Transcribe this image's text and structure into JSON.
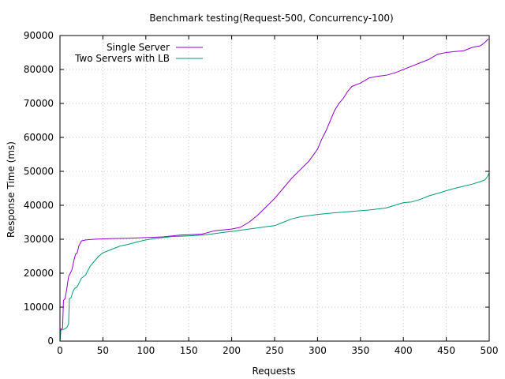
{
  "chart_data": {
    "type": "line",
    "title": "Benchmark testing(Request-500, Concurrency-100)",
    "xlabel": "Requests",
    "ylabel": "Response Time (ms)",
    "xlim": [
      0,
      500
    ],
    "ylim": [
      0,
      90000
    ],
    "xticks": [
      0,
      50,
      100,
      150,
      200,
      250,
      300,
      350,
      400,
      450,
      500
    ],
    "yticks": [
      0,
      10000,
      20000,
      30000,
      40000,
      50000,
      60000,
      70000,
      80000,
      90000
    ],
    "grid": "dotted",
    "legend_position": "top-left",
    "series": [
      {
        "name": "Single Server",
        "color": "#9400d3",
        "points": [
          [
            0,
            0
          ],
          [
            1,
            3500
          ],
          [
            2,
            3600
          ],
          [
            3,
            3800
          ],
          [
            4,
            12000
          ],
          [
            6,
            12500
          ],
          [
            8,
            15500
          ],
          [
            10,
            19000
          ],
          [
            12,
            20000
          ],
          [
            14,
            21000
          ],
          [
            16,
            23500
          ],
          [
            18,
            25500
          ],
          [
            20,
            26000
          ],
          [
            22,
            28000
          ],
          [
            25,
            29500
          ],
          [
            30,
            29800
          ],
          [
            40,
            30000
          ],
          [
            60,
            30200
          ],
          [
            80,
            30300
          ],
          [
            100,
            30500
          ],
          [
            120,
            30700
          ],
          [
            140,
            31200
          ],
          [
            155,
            31400
          ],
          [
            165,
            31500
          ],
          [
            180,
            32500
          ],
          [
            200,
            33000
          ],
          [
            210,
            33500
          ],
          [
            220,
            35000
          ],
          [
            230,
            37000
          ],
          [
            240,
            39500
          ],
          [
            250,
            42000
          ],
          [
            260,
            45000
          ],
          [
            270,
            48000
          ],
          [
            280,
            50500
          ],
          [
            290,
            53000
          ],
          [
            300,
            56500
          ],
          [
            305,
            59500
          ],
          [
            310,
            62000
          ],
          [
            315,
            65000
          ],
          [
            320,
            68000
          ],
          [
            325,
            70000
          ],
          [
            330,
            71500
          ],
          [
            335,
            73500
          ],
          [
            340,
            75000
          ],
          [
            350,
            76000
          ],
          [
            360,
            77500
          ],
          [
            370,
            78000
          ],
          [
            380,
            78300
          ],
          [
            390,
            79000
          ],
          [
            400,
            80000
          ],
          [
            410,
            81000
          ],
          [
            420,
            82000
          ],
          [
            430,
            83000
          ],
          [
            440,
            84500
          ],
          [
            450,
            85000
          ],
          [
            460,
            85300
          ],
          [
            470,
            85500
          ],
          [
            480,
            86500
          ],
          [
            490,
            87000
          ],
          [
            495,
            88000
          ],
          [
            499,
            89000
          ]
        ]
      },
      {
        "name": "Two Servers with LB",
        "color": "#009e73",
        "points": [
          [
            0,
            0
          ],
          [
            1,
            3200
          ],
          [
            2,
            3300
          ],
          [
            5,
            3500
          ],
          [
            8,
            4000
          ],
          [
            10,
            5000
          ],
          [
            11,
            12500
          ],
          [
            13,
            12800
          ],
          [
            15,
            14500
          ],
          [
            17,
            15500
          ],
          [
            20,
            16000
          ],
          [
            25,
            18500
          ],
          [
            30,
            19500
          ],
          [
            35,
            22000
          ],
          [
            40,
            23500
          ],
          [
            45,
            25000
          ],
          [
            50,
            26000
          ],
          [
            55,
            26500
          ],
          [
            60,
            27000
          ],
          [
            70,
            28000
          ],
          [
            80,
            28500
          ],
          [
            90,
            29200
          ],
          [
            100,
            29800
          ],
          [
            110,
            30200
          ],
          [
            120,
            30500
          ],
          [
            130,
            30800
          ],
          [
            150,
            31000
          ],
          [
            170,
            31300
          ],
          [
            190,
            32000
          ],
          [
            200,
            32300
          ],
          [
            220,
            33000
          ],
          [
            240,
            33700
          ],
          [
            250,
            34000
          ],
          [
            260,
            35000
          ],
          [
            270,
            36000
          ],
          [
            280,
            36600
          ],
          [
            300,
            37300
          ],
          [
            320,
            37800
          ],
          [
            340,
            38200
          ],
          [
            360,
            38600
          ],
          [
            380,
            39200
          ],
          [
            390,
            40000
          ],
          [
            400,
            40800
          ],
          [
            410,
            41000
          ],
          [
            420,
            41800
          ],
          [
            430,
            42800
          ],
          [
            440,
            43500
          ],
          [
            450,
            44300
          ],
          [
            460,
            45000
          ],
          [
            470,
            45600
          ],
          [
            480,
            46200
          ],
          [
            490,
            47000
          ],
          [
            495,
            47500
          ],
          [
            498,
            48500
          ],
          [
            500,
            49500
          ]
        ]
      }
    ]
  }
}
